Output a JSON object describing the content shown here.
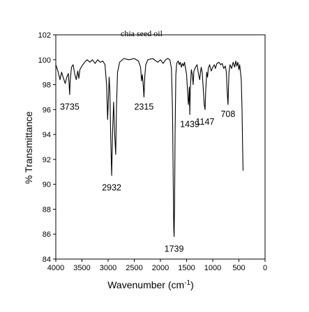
{
  "chart_data": {
    "type": "line",
    "title": "chia seed oil",
    "xlabel": "Wavenumber (cm",
    "xlabel_superscript": "-1",
    "xlabel_suffix": ")",
    "ylabel": "% Transmittance",
    "xlim": [
      4000,
      0
    ],
    "ylim": [
      84,
      102
    ],
    "x_ticks": [
      "4000",
      "3500",
      "3000",
      "2500",
      "2000",
      "1500",
      "1000",
      "500",
      "0"
    ],
    "y_ticks": [
      "84",
      "86",
      "88",
      "90",
      "92",
      "94",
      "96",
      "98",
      "100",
      "102"
    ],
    "grid": false,
    "series": [
      {
        "color": "#000000",
        "points": [
          [
            4000,
            99.6
          ],
          [
            3960,
            99.1
          ],
          [
            3920,
            98.4
          ],
          [
            3890,
            99.0
          ],
          [
            3860,
            98.6
          ],
          [
            3820,
            98.1
          ],
          [
            3790,
            98.6
          ],
          [
            3760,
            98.9
          ],
          [
            3745,
            98.0
          ],
          [
            3735,
            97.2
          ],
          [
            3725,
            98.3
          ],
          [
            3700,
            99.4
          ],
          [
            3670,
            99.6
          ],
          [
            3640,
            98.9
          ],
          [
            3610,
            98.4
          ],
          [
            3580,
            99.1
          ],
          [
            3560,
            98.5
          ],
          [
            3540,
            99.2
          ],
          [
            3500,
            99.5
          ],
          [
            3450,
            99.8
          ],
          [
            3400,
            100.0
          ],
          [
            3350,
            99.8
          ],
          [
            3300,
            100.0
          ],
          [
            3250,
            99.7
          ],
          [
            3200,
            100.0
          ],
          [
            3150,
            99.8
          ],
          [
            3100,
            99.9
          ],
          [
            3060,
            99.6
          ],
          [
            3030,
            98.0
          ],
          [
            3010,
            95.2
          ],
          [
            2995,
            96.8
          ],
          [
            2980,
            98.6
          ],
          [
            2965,
            97.4
          ],
          [
            2950,
            93.6
          ],
          [
            2932,
            90.7
          ],
          [
            2915,
            94.2
          ],
          [
            2895,
            96.6
          ],
          [
            2875,
            94.0
          ],
          [
            2855,
            92.4
          ],
          [
            2840,
            96.2
          ],
          [
            2820,
            99.0
          ],
          [
            2780,
            99.8
          ],
          [
            2700,
            100.1
          ],
          [
            2600,
            100.0
          ],
          [
            2500,
            100.1
          ],
          [
            2420,
            99.9
          ],
          [
            2380,
            99.4
          ],
          [
            2360,
            98.3
          ],
          [
            2345,
            98.8
          ],
          [
            2330,
            98.0
          ],
          [
            2315,
            97.0
          ],
          [
            2300,
            98.6
          ],
          [
            2280,
            99.6
          ],
          [
            2240,
            100.0
          ],
          [
            2150,
            100.1
          ],
          [
            2050,
            99.8
          ],
          [
            2000,
            100.0
          ],
          [
            1950,
            99.7
          ],
          [
            1900,
            100.0
          ],
          [
            1860,
            100.1
          ],
          [
            1820,
            100.0
          ],
          [
            1790,
            99.3
          ],
          [
            1770,
            96.0
          ],
          [
            1755,
            90.0
          ],
          [
            1745,
            86.5
          ],
          [
            1739,
            85.8
          ],
          [
            1730,
            88.5
          ],
          [
            1720,
            94.0
          ],
          [
            1705,
            98.8
          ],
          [
            1690,
            99.7
          ],
          [
            1660,
            99.9
          ],
          [
            1640,
            99.6
          ],
          [
            1620,
            99.8
          ],
          [
            1600,
            99.4
          ],
          [
            1580,
            99.7
          ],
          [
            1560,
            99.5
          ],
          [
            1540,
            99.8
          ],
          [
            1500,
            98.8
          ],
          [
            1480,
            97.4
          ],
          [
            1465,
            96.4
          ],
          [
            1455,
            97.0
          ],
          [
            1448,
            97.8
          ],
          [
            1439,
            95.6
          ],
          [
            1430,
            97.6
          ],
          [
            1410,
            99.2
          ],
          [
            1390,
            98.8
          ],
          [
            1375,
            98.0
          ],
          [
            1360,
            99.1
          ],
          [
            1330,
            99.4
          ],
          [
            1300,
            99.6
          ],
          [
            1270,
            98.8
          ],
          [
            1250,
            98.4
          ],
          [
            1235,
            99.0
          ],
          [
            1220,
            99.4
          ],
          [
            1200,
            98.9
          ],
          [
            1180,
            97.6
          ],
          [
            1163,
            96.4
          ],
          [
            1147,
            96.0
          ],
          [
            1135,
            97.5
          ],
          [
            1115,
            99.0
          ],
          [
            1098,
            98.6
          ],
          [
            1085,
            99.3
          ],
          [
            1060,
            99.6
          ],
          [
            1030,
            99.1
          ],
          [
            1000,
            99.4
          ],
          [
            970,
            99.6
          ],
          [
            950,
            99.3
          ],
          [
            920,
            99.7
          ],
          [
            880,
            99.8
          ],
          [
            850,
            99.6
          ],
          [
            820,
            99.7
          ],
          [
            790,
            99.3
          ],
          [
            760,
            99.5
          ],
          [
            740,
            99.0
          ],
          [
            725,
            97.6
          ],
          [
            715,
            96.8
          ],
          [
            708,
            96.4
          ],
          [
            700,
            97.6
          ],
          [
            690,
            99.0
          ],
          [
            670,
            99.6
          ],
          [
            640,
            99.3
          ],
          [
            610,
            99.8
          ],
          [
            580,
            99.4
          ],
          [
            560,
            99.9
          ],
          [
            540,
            99.5
          ],
          [
            520,
            99.8
          ],
          [
            500,
            99.2
          ],
          [
            485,
            99.6
          ],
          [
            470,
            99.0
          ],
          [
            455,
            98.4
          ],
          [
            440,
            96.0
          ],
          [
            430,
            93.0
          ],
          [
            420,
            91.1
          ]
        ]
      }
    ],
    "annotations": [
      {
        "text": "3735",
        "x": 3735,
        "y": 96.0
      },
      {
        "text": "2932",
        "x": 2932,
        "y": 89.5
      },
      {
        "text": "2315",
        "x": 2315,
        "y": 96.0
      },
      {
        "text": "1739",
        "x": 1739,
        "y": 84.6
      },
      {
        "text": "1439",
        "x": 1439,
        "y": 94.6
      },
      {
        "text": "1147",
        "x": 1147,
        "y": 94.8
      },
      {
        "text": "708",
        "x": 708,
        "y": 95.4
      }
    ]
  }
}
